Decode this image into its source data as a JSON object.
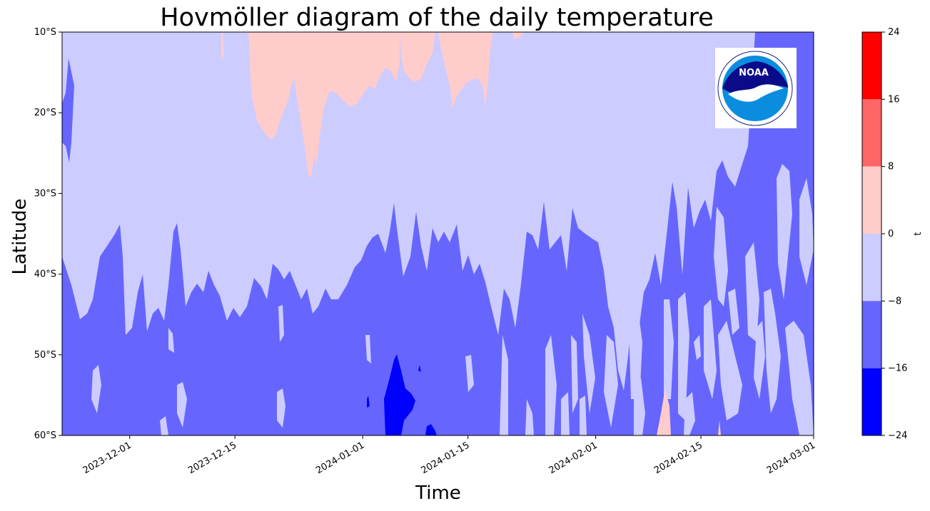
{
  "chart_data": {
    "type": "heatmap",
    "title": "Hovmöller diagram of the daily temperature",
    "xlabel": "Time",
    "ylabel": "Latitude",
    "x_range": [
      "2023-11-22",
      "2024-03-01"
    ],
    "x_ticks": [
      "2023-12-01",
      "2023-12-15",
      "2024-01-01",
      "2024-01-15",
      "2024-02-01",
      "2024-02-15",
      "2024-03-01"
    ],
    "y_range": [
      -60,
      -10
    ],
    "y_ticks": [
      "10°S",
      "20°S",
      "30°S",
      "40°S",
      "50°S",
      "60°S"
    ],
    "y_tick_values": [
      -10,
      -20,
      -30,
      -40,
      -50,
      -60
    ],
    "colorbar": {
      "label": "t",
      "levels": [
        "24",
        "16",
        "8",
        "0",
        "−8",
        "−16",
        "−24"
      ],
      "level_values": [
        24,
        16,
        8,
        0,
        -8,
        -16,
        -24
      ],
      "colors": [
        "#ff0000",
        "#ff6666",
        "#ffcccc",
        "#ccccff",
        "#6666ff",
        "#0000ff"
      ]
    },
    "grid": false,
    "logo": "NOAA"
  }
}
